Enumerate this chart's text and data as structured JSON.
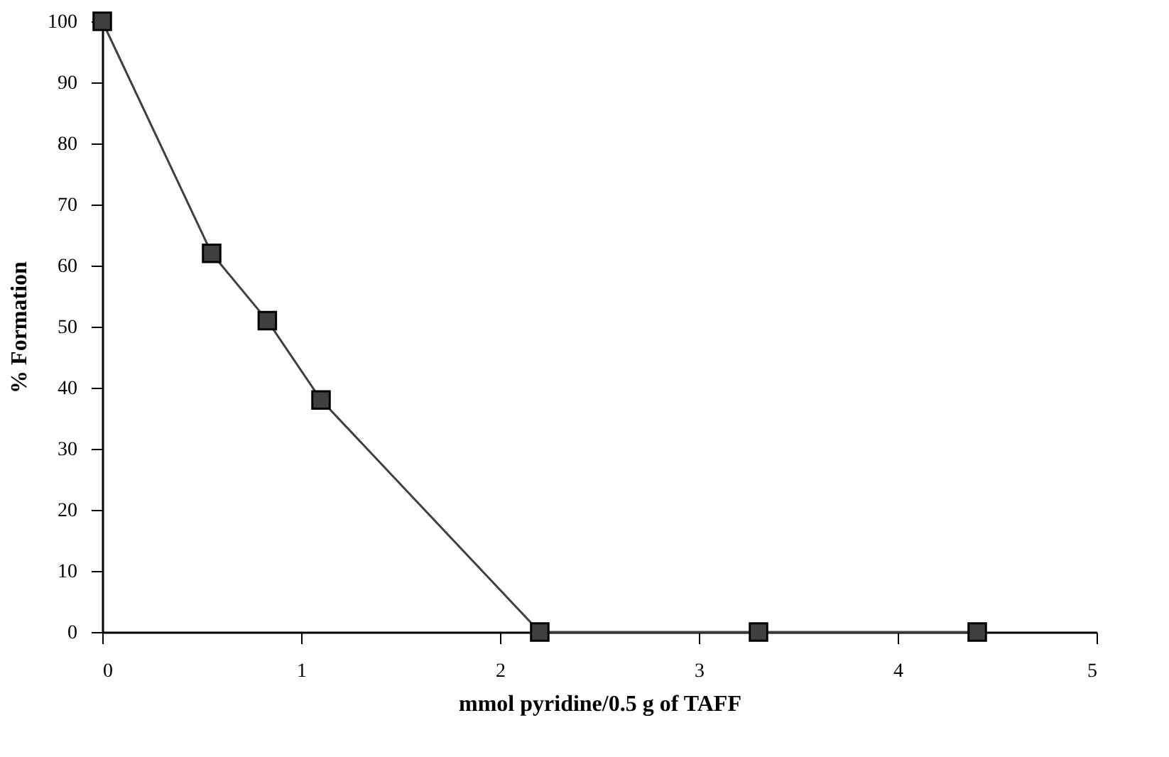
{
  "chart_data": {
    "type": "line",
    "xlabel": "mmol pyridine/0.5 g of TAFF",
    "ylabel": "% Formation",
    "x": [
      0,
      0.55,
      0.83,
      1.1,
      2.2,
      3.3,
      4.4
    ],
    "series": [
      {
        "color": "#404040",
        "values": [
          100,
          62,
          51,
          38,
          0,
          0,
          0
        ]
      }
    ],
    "xlim": [
      0,
      5
    ],
    "xticks": [
      0,
      1,
      2,
      3,
      4,
      5
    ],
    "ylim": [
      0,
      100
    ],
    "yticks": [
      0,
      10,
      20,
      30,
      40,
      50,
      60,
      70,
      80,
      90,
      100
    ],
    "grid": false,
    "marker": "square",
    "line_style": "solid"
  }
}
